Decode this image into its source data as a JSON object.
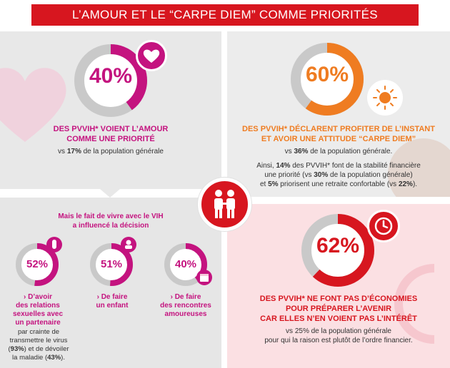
{
  "banner": {
    "title": "L’AMOUR ET LE “CARPE DIEM” COMME PRIORITÉS"
  },
  "love": {
    "percent": "40%",
    "fill": 0.4,
    "headline_1": "DES PVVIH* VOIENT L’AMOUR",
    "headline_2": "COMME UNE PRIORITÉ",
    "compare_prefix": "vs ",
    "compare_value": "17%",
    "compare_suffix": " de la population générale"
  },
  "carpe": {
    "percent": "60%",
    "fill": 0.6,
    "headline_1": "DES PVVIH* DÉCLARENT PROFITER DE L’INSTANT",
    "headline_2": "ET AVOIR UNE ATTITUDE “CARPE DIEM”",
    "compare_prefix": "vs ",
    "compare_value": "36%",
    "compare_suffix": " de la population générale.",
    "detail_1_a": "Ainsi, ",
    "detail_1_b": "14%",
    "detail_1_c": " des PVVIH* font de la stabilité financière",
    "detail_2_a": "une priorité (vs ",
    "detail_2_b": "30%",
    "detail_2_c": " de la population générale)",
    "detail_3_a": "et ",
    "detail_3_b": "5%",
    "detail_3_c": " priorisent une retraite confortable (vs ",
    "detail_3_d": "22%",
    "detail_3_e": ")."
  },
  "vih": {
    "intro_1": "Mais le fait de vivre avec le VIH",
    "intro_2": "a influencé la décision",
    "items": [
      {
        "percent": "52%",
        "fill": 0.52,
        "label": [
          "› D’avoir",
          "des relations",
          "sexuelles avec",
          "un partenaire"
        ]
      },
      {
        "percent": "51%",
        "fill": 0.51,
        "label": [
          "› De faire",
          "un enfant"
        ]
      },
      {
        "percent": "40%",
        "fill": 0.4,
        "label": [
          "› De faire",
          "des rencontres",
          "amoureuses"
        ]
      }
    ],
    "reason_1": "par crainte de",
    "reason_2": "transmettre le virus",
    "reason_3_a": "(",
    "reason_3_b": "93%",
    "reason_3_c": ") et de dévoiler",
    "reason_4_a": "la maladie (",
    "reason_4_b": "43%",
    "reason_4_c": ")."
  },
  "savings": {
    "percent": "62%",
    "fill": 0.62,
    "headline_1": "DES PVVIH* NE FONT PAS D’ÉCONOMIES",
    "headline_2": "POUR PRÉPARER L’AVENIR",
    "headline_3": "CAR ELLES N’EN VOIENT PAS L’INTÉRÊT",
    "compare_1": "vs 25% de la population générale",
    "compare_2": "pour qui la raison est plutôt de l’ordre financier."
  },
  "colors": {
    "red": "#d7161f",
    "magenta": "#c4137f",
    "orange": "#ef7c21",
    "gray_ring": "#c9c9c9"
  },
  "icons": [
    "heart-icon",
    "sun-icon",
    "couple-icon",
    "condom-icon",
    "baby-icon",
    "calendar-icon",
    "clock-icon"
  ]
}
